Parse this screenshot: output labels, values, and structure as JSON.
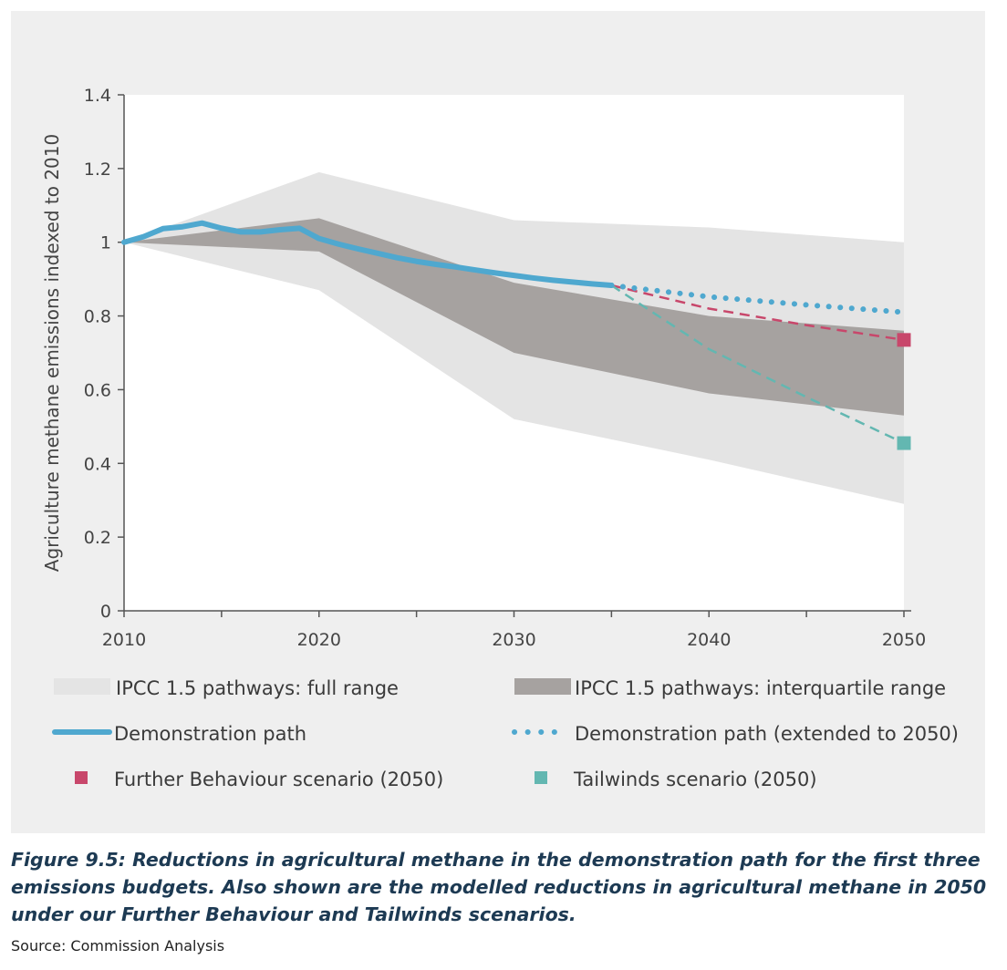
{
  "colors": {
    "full_range": "#e4e4e4",
    "interquartile": "#a6a2a0",
    "demonstration": "#4fa8cf",
    "further_behaviour": "#c8476b",
    "tailwinds": "#63b7b1",
    "axis": "#555555"
  },
  "chart_data": {
    "type": "line",
    "ylabel": "Agriculture methane emissions indexed to 2010",
    "xlabel": "",
    "xlim": [
      2010,
      2050
    ],
    "ylim": [
      0,
      1.4
    ],
    "x_ticks": [
      2010,
      2020,
      2030,
      2040,
      2050
    ],
    "x_tick_labels": [
      "2010",
      "2020",
      "2030",
      "2040",
      "2050"
    ],
    "y_ticks": [
      0,
      0.2,
      0.4,
      0.6,
      0.8,
      1,
      1.2,
      1.4
    ],
    "y_tick_labels": [
      "0",
      "0.2",
      "0.4",
      "0.6",
      "0.8",
      "1",
      "1.2",
      "1.4"
    ],
    "grid": false,
    "legend_position": "bottom",
    "bands": [
      {
        "name": "IPCC 1.5 pathways: full range",
        "x": [
          2010,
          2020,
          2030,
          2040,
          2050
        ],
        "upper": [
          1.0,
          1.19,
          1.06,
          1.04,
          1.0
        ],
        "lower": [
          1.0,
          0.87,
          0.52,
          0.41,
          0.29
        ]
      },
      {
        "name": "IPCC 1.5 pathways: interquartile range",
        "x": [
          2010,
          2020,
          2030,
          2040,
          2050
        ],
        "upper": [
          1.0,
          1.065,
          0.89,
          0.8,
          0.76
        ],
        "lower": [
          1.0,
          0.975,
          0.7,
          0.59,
          0.53
        ]
      }
    ],
    "series": [
      {
        "name": "Demonstration path",
        "style": "solid",
        "x": [
          2010,
          2011,
          2012,
          2013,
          2014,
          2015,
          2016,
          2017,
          2018,
          2019,
          2020,
          2021,
          2022,
          2023,
          2024,
          2025,
          2026,
          2027,
          2028,
          2029,
          2030,
          2031,
          2032,
          2033,
          2034,
          2035
        ],
        "y": [
          1.0,
          1.015,
          1.037,
          1.042,
          1.052,
          1.038,
          1.028,
          1.028,
          1.034,
          1.038,
          1.01,
          0.995,
          0.982,
          0.97,
          0.958,
          0.948,
          0.94,
          0.933,
          0.925,
          0.917,
          0.91,
          0.903,
          0.897,
          0.892,
          0.887,
          0.883
        ]
      },
      {
        "name": "Demonstration path (extended to 2050)",
        "style": "dotted",
        "x": [
          2035,
          2040,
          2045,
          2050
        ],
        "y": [
          0.883,
          0.852,
          0.83,
          0.81
        ]
      },
      {
        "name": "Further Behaviour scenario (2050)",
        "style": "dashed",
        "x": [
          2035,
          2040,
          2045,
          2050
        ],
        "y": [
          0.883,
          0.82,
          0.775,
          0.735
        ]
      },
      {
        "name": "Tailwinds scenario (2050)",
        "style": "dashed",
        "x": [
          2035,
          2040,
          2045,
          2050
        ],
        "y": [
          0.883,
          0.71,
          0.58,
          0.455
        ]
      }
    ],
    "points": [
      {
        "name": "Further Behaviour scenario (2050)",
        "x": 2050,
        "y": 0.735
      },
      {
        "name": "Tailwinds scenario (2050)",
        "x": 2050,
        "y": 0.455
      }
    ]
  },
  "legend": {
    "full_range": "IPCC 1.5 pathways: full range",
    "interquartile": "IPCC 1.5 pathways: interquartile range",
    "demonstration": "Demonstration path",
    "extended": "Demonstration path (extended to 2050)",
    "further_behaviour": "Further Behaviour scenario (2050)",
    "tailwinds": "Tailwinds scenario (2050)"
  },
  "caption": "Figure 9.5: Reductions in agricultural methane in the demonstration path for the first three emissions budgets. Also shown are the modelled reductions in agricultural methane in 2050 under our Further Behaviour and Tailwinds scenarios.",
  "source": "Source: Commission Analysis"
}
